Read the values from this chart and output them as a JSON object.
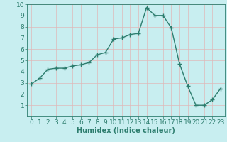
{
  "x": [
    0,
    1,
    2,
    3,
    4,
    5,
    6,
    7,
    8,
    9,
    10,
    11,
    12,
    13,
    14,
    15,
    16,
    17,
    18,
    19,
    20,
    21,
    22,
    23
  ],
  "y": [
    2.9,
    3.4,
    4.2,
    4.3,
    4.3,
    4.5,
    4.6,
    4.8,
    5.5,
    5.7,
    6.9,
    7.0,
    7.3,
    7.4,
    9.7,
    9.0,
    9.0,
    7.9,
    4.7,
    2.7,
    1.0,
    1.0,
    1.5,
    2.5
  ],
  "line_color": "#2d7d6e",
  "marker": "+",
  "marker_size": 4,
  "marker_lw": 1.0,
  "bg_color": "#c8eef0",
  "grid_color": "#e8e8e8",
  "xlabel": "Humidex (Indice chaleur)",
  "xlabel_fontsize": 7,
  "tick_fontsize": 6.5,
  "ylim": [
    0,
    10
  ],
  "xlim": [
    -0.5,
    23.5
  ],
  "yticks": [
    1,
    2,
    3,
    4,
    5,
    6,
    7,
    8,
    9,
    10
  ],
  "xticks": [
    0,
    1,
    2,
    3,
    4,
    5,
    6,
    7,
    8,
    9,
    10,
    11,
    12,
    13,
    14,
    15,
    16,
    17,
    18,
    19,
    20,
    21,
    22,
    23
  ],
  "line_width": 1.0
}
